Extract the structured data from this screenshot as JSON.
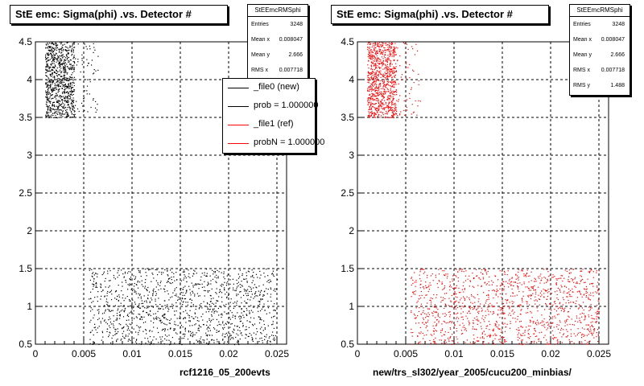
{
  "chart_data": [
    {
      "type": "scatter",
      "title": "StE emc: Sigma(phi) .vs. Detector #",
      "xlabel": "rcf1216_05_200evts",
      "ylabel": "",
      "xlim": [
        0,
        0.026
      ],
      "ylim": [
        0.5,
        4.5
      ],
      "x_ticks": [
        "0",
        "0.005",
        "0.01",
        "0.015",
        "0.02",
        "0.025"
      ],
      "y_ticks": [
        "0.5",
        "1",
        "1.5",
        "2",
        "2.5",
        "3",
        "3.5",
        "4",
        "4.5"
      ],
      "grid": true,
      "marker_color": "#000000",
      "point_regions": [
        {
          "x": [
            0.001,
            0.004
          ],
          "y": [
            3.5,
            4.5
          ],
          "density": "dense"
        },
        {
          "x": [
            0.004,
            0.0065
          ],
          "y": [
            3.5,
            4.5
          ],
          "density": "sparse"
        },
        {
          "x": [
            0.0055,
            0.025
          ],
          "y": [
            0.5,
            1.5
          ],
          "density": "medium"
        }
      ],
      "stats": {
        "name": "StEEmcRMSphi",
        "entries_label": "Entries",
        "entries": "3248",
        "mean_x_label": "Mean x",
        "mean_x": "0.008047",
        "mean_y_label": "Mean y",
        "mean_y": "2.666",
        "rms_x_label": "RMS x",
        "rms_x": "0.007718"
      },
      "legend": [
        {
          "label": "_file0 (new)",
          "color": "#000000"
        },
        {
          "label": "prob = 1.000000",
          "color": "#000000"
        },
        {
          "label": "_file1 (ref)",
          "color": "#ff0000"
        },
        {
          "label": "probN = 1.000000",
          "color": "#ff0000"
        }
      ]
    },
    {
      "type": "scatter",
      "title": "StE emc: Sigma(phi) .vs. Detector #",
      "xlabel": "new/trs_sl302/year_2005/cucu200_minbias/",
      "ylabel": "",
      "xlim": [
        0,
        0.026
      ],
      "ylim": [
        0.5,
        4.5
      ],
      "x_ticks": [
        "0",
        "0.005",
        "0.01",
        "0.015",
        "0.02",
        "0.025"
      ],
      "y_ticks": [
        "0.5",
        "1",
        "1.5",
        "2",
        "2.5",
        "3",
        "3.5",
        "4",
        "4.5"
      ],
      "grid": true,
      "marker_color": "#ff0000",
      "point_regions": [
        {
          "x": [
            0.001,
            0.004
          ],
          "y": [
            3.5,
            4.5
          ],
          "density": "dense"
        },
        {
          "x": [
            0.004,
            0.0065
          ],
          "y": [
            3.5,
            4.5
          ],
          "density": "sparse"
        },
        {
          "x": [
            0.0055,
            0.025
          ],
          "y": [
            0.5,
            1.5
          ],
          "density": "medium"
        }
      ],
      "stats": {
        "name": "StEEmcRMSphi",
        "entries_label": "Entries",
        "entries": "3248",
        "mean_x_label": "Mean x",
        "mean_x": "0.008047",
        "mean_y_label": "Mean y",
        "mean_y": "2.666",
        "rms_x_label": "RMS x",
        "rms_x": "0.007718",
        "rms_y_label": "RMS y",
        "rms_y": "1.488"
      }
    }
  ]
}
